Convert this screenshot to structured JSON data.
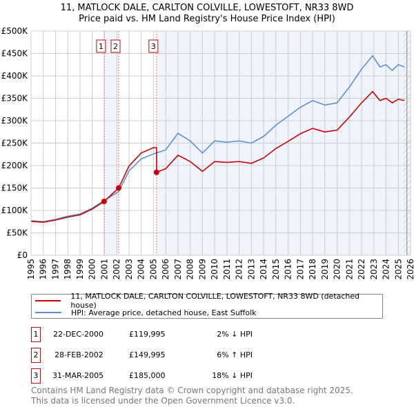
{
  "chart_data": {
    "type": "line",
    "title": "11, MATLOCK DALE, CARLTON COLVILLE, LOWESTOFT, NR33 8WD",
    "subtitle": "Price paid vs. HM Land Registry's House Price Index (HPI)",
    "xlabel": "",
    "ylabel": "",
    "xlim": [
      1995,
      2026
    ],
    "ylim": [
      0,
      500000
    ],
    "yticks": [
      {
        "v": 0,
        "label": "£0"
      },
      {
        "v": 50000,
        "label": "£50K"
      },
      {
        "v": 100000,
        "label": "£100K"
      },
      {
        "v": 150000,
        "label": "£150K"
      },
      {
        "v": 200000,
        "label": "£200K"
      },
      {
        "v": 250000,
        "label": "£250K"
      },
      {
        "v": 300000,
        "label": "£300K"
      },
      {
        "v": 350000,
        "label": "£350K"
      },
      {
        "v": 400000,
        "label": "£400K"
      },
      {
        "v": 450000,
        "label": "£450K"
      },
      {
        "v": 500000,
        "label": "£500K"
      }
    ],
    "xticks": [
      "1995",
      "1996",
      "1997",
      "1998",
      "1999",
      "2000",
      "2001",
      "2002",
      "2003",
      "2004",
      "2005",
      "2006",
      "2007",
      "2008",
      "2009",
      "2010",
      "2011",
      "2012",
      "2013",
      "2014",
      "2015",
      "2016",
      "2017",
      "2018",
      "2019",
      "2020",
      "2021",
      "2022",
      "2023",
      "2024",
      "2025",
      "2026"
    ],
    "grid": true,
    "series": [
      {
        "name": "11, MATLOCK DALE, CARLTON COLVILLE, LOWESTOFT, NR33 8WD (detached house)",
        "color": "#cc0000",
        "x": [
          1995,
          1996,
          1997,
          1998,
          1999,
          2000,
          2000.97,
          2002.16,
          2003,
          2004,
          2005,
          2005.25,
          2005.26,
          2006,
          2007,
          2008,
          2009,
          2010,
          2011,
          2012,
          2013,
          2014,
          2015,
          2016,
          2017,
          2018,
          2019,
          2020,
          2021,
          2022,
          2022.9,
          2023.5,
          2024,
          2024.5,
          2025,
          2025.5
        ],
        "y": [
          75500,
          73500,
          78500,
          85000,
          90000,
          103000,
          119995,
          149995,
          199000,
          228000,
          240000,
          240000,
          185000,
          193000,
          223000,
          209000,
          187000,
          209000,
          207000,
          209000,
          205000,
          217000,
          238000,
          254000,
          271000,
          283000,
          275000,
          279000,
          308000,
          340000,
          365000,
          345000,
          350000,
          340000,
          348000,
          345000
        ]
      },
      {
        "name": "HPI: Average price, detached house, East Suffolk",
        "color": "#5b8fd0",
        "x": [
          1995,
          1996,
          1997,
          1998,
          1999,
          2000,
          2000.97,
          2002.16,
          2003,
          2004,
          2005,
          2006,
          2007,
          2008,
          2009,
          2010,
          2011,
          2012,
          2013,
          2014,
          2015,
          2016,
          2017,
          2018,
          2019,
          2020,
          2021,
          2022,
          2022.9,
          2023.5,
          2024,
          2024.5,
          2025,
          2025.5
        ],
        "y": [
          77000,
          75000,
          80000,
          87000,
          92000,
          105000,
          122000,
          142000,
          188000,
          215000,
          226000,
          235000,
          272000,
          255000,
          228000,
          255000,
          252000,
          255000,
          250000,
          265000,
          290000,
          310000,
          330000,
          345000,
          335000,
          340000,
          375000,
          415000,
          445000,
          420000,
          425000,
          412000,
          425000,
          420000
        ]
      }
    ],
    "sales": [
      {
        "id": "1",
        "x": 2000.97,
        "y": 119995
      },
      {
        "id": "2",
        "x": 2002.16,
        "y": 149995
      },
      {
        "id": "3",
        "x": 2005.25,
        "y": 185000
      }
    ],
    "forecast_start": 2025.4,
    "legend_placement": "below"
  },
  "transactions": [
    {
      "id": "1",
      "date": "22-DEC-2000",
      "price": "£119,995",
      "hpi": "2% ↓ HPI"
    },
    {
      "id": "2",
      "date": "28-FEB-2002",
      "price": "£149,995",
      "hpi": "6% ↑ HPI"
    },
    {
      "id": "3",
      "date": "31-MAR-2005",
      "price": "£185,000",
      "hpi": "18% ↓ HPI"
    }
  ],
  "footer": {
    "line1": "Contains HM Land Registry data © Crown copyright and database right 2025.",
    "line2": "This data is licensed under the Open Government Licence v3.0."
  }
}
